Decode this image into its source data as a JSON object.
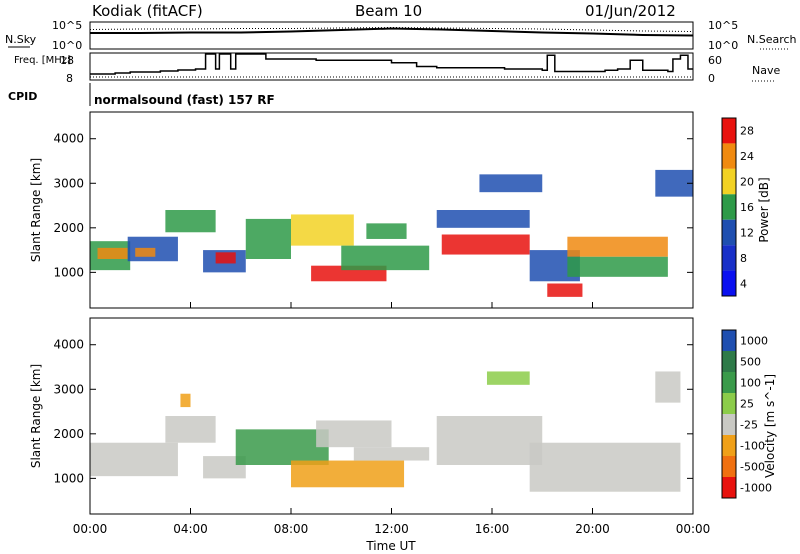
{
  "header": {
    "station": "Kodiak (fitACF)",
    "beam": "Beam 10",
    "date": "01/Jun/2012",
    "cpid_label": "CPID",
    "cpid_value": "normalsound (fast) 157 RF"
  },
  "colors": {
    "sky_line": "#000000",
    "power_red": "#e8120e",
    "power_orange": "#f08a10",
    "power_yellow": "#f2d224",
    "power_green": "#2e9a48",
    "power_blue": "#1f4fb0",
    "vel_gray": "#c9c9c4",
    "vel_green": "#3a9a4a",
    "vel_orange": "#f0a018"
  },
  "chart_data": [
    {
      "type": "line",
      "name": "noise",
      "left_label": "N.Sky",
      "right_label": "N.Search",
      "yticks_left": [
        "10^5",
        "10^0"
      ],
      "yticks_right": [
        "10^5",
        "10^0"
      ],
      "x": [
        0,
        2,
        4,
        6,
        8,
        10,
        12,
        14,
        16,
        18,
        20,
        22,
        24
      ],
      "series": [
        {
          "name": "N.Sky",
          "values": [
            3.0,
            3.0,
            3.1,
            3.1,
            3.3,
            3.6,
            3.9,
            3.7,
            3.4,
            3.1,
            2.9,
            2.6,
            2.5
          ]
        },
        {
          "name": "N.Search",
          "values": [
            3.7,
            3.8,
            3.8,
            3.9,
            3.9,
            4.0,
            4.1,
            4.0,
            3.9,
            3.8,
            3.6,
            3.4,
            3.3
          ]
        }
      ]
    },
    {
      "type": "line",
      "name": "frequency",
      "left_label": "Freq. [MHz]",
      "right_label": "Nave",
      "yticks_left": [
        "18",
        "8"
      ],
      "yticks_right": [
        "60",
        "0"
      ],
      "ylim": [
        8,
        18
      ],
      "segments": [
        [
          0.0,
          10.0
        ],
        [
          1.0,
          10.4
        ],
        [
          1.6,
          10.8
        ],
        [
          2.8,
          11.2
        ],
        [
          3.5,
          11.6
        ],
        [
          4.2,
          12.0
        ],
        [
          4.6,
          18.0
        ],
        [
          5.0,
          12.0
        ],
        [
          5.15,
          18.0
        ],
        [
          5.6,
          12.0
        ],
        [
          5.8,
          18.0
        ],
        [
          6.3,
          18.0
        ],
        [
          7.0,
          16.0
        ],
        [
          8.0,
          16.0
        ],
        [
          9.0,
          15.5
        ],
        [
          10.0,
          15.5
        ],
        [
          11.0,
          15.5
        ],
        [
          12.0,
          14.5
        ],
        [
          13.0,
          13.0
        ],
        [
          13.8,
          12.5
        ],
        [
          14.5,
          12.5
        ],
        [
          15.5,
          12.5
        ],
        [
          16.5,
          12.0
        ],
        [
          18.0,
          11.5
        ],
        [
          18.2,
          17.5
        ],
        [
          18.5,
          11.0
        ],
        [
          19.5,
          11.0
        ],
        [
          20.5,
          11.5
        ],
        [
          21.0,
          12.0
        ],
        [
          21.5,
          15.5
        ],
        [
          22.0,
          11.5
        ],
        [
          23.0,
          11.0
        ],
        [
          23.2,
          16.0
        ],
        [
          23.5,
          17.5
        ],
        [
          23.8,
          12.0
        ]
      ]
    },
    {
      "type": "heatmap",
      "name": "power",
      "ylabel": "Slant Range [km]",
      "yticks": [
        1000,
        2000,
        3000,
        4000
      ],
      "ylim": [
        200,
        4600
      ],
      "colorbar_label": "Power [dB]",
      "colorbar_ticks": [
        "28",
        "24",
        "20",
        "16",
        "12",
        "8",
        "4"
      ],
      "colorbar_colors": [
        "#e8120e",
        "#f08a10",
        "#f2d224",
        "#2e9a48",
        "#1f4fb0",
        "#1830c8",
        "#0a10f0"
      ],
      "regions": [
        {
          "t0": 0.0,
          "t1": 1.6,
          "r0": 1050,
          "r1": 1700,
          "color": "#2e9a48"
        },
        {
          "t0": 0.3,
          "t1": 1.5,
          "r0": 1300,
          "r1": 1550,
          "color": "#f08a10"
        },
        {
          "t0": 1.5,
          "t1": 3.5,
          "r0": 1250,
          "r1": 1800,
          "color": "#1f4fb0"
        },
        {
          "t0": 1.8,
          "t1": 2.6,
          "r0": 1350,
          "r1": 1550,
          "color": "#f08a10"
        },
        {
          "t0": 3.0,
          "t1": 5.0,
          "r0": 1900,
          "r1": 2400,
          "color": "#2e9a48"
        },
        {
          "t0": 4.5,
          "t1": 6.2,
          "r0": 1000,
          "r1": 1500,
          "color": "#1f4fb0"
        },
        {
          "t0": 5.0,
          "t1": 5.8,
          "r0": 1200,
          "r1": 1450,
          "color": "#e8120e"
        },
        {
          "t0": 6.2,
          "t1": 8.0,
          "r0": 1300,
          "r1": 2200,
          "color": "#2e9a48"
        },
        {
          "t0": 8.0,
          "t1": 10.5,
          "r0": 1600,
          "r1": 2300,
          "color": "#f2d224"
        },
        {
          "t0": 8.8,
          "t1": 11.8,
          "r0": 800,
          "r1": 1150,
          "color": "#e8120e"
        },
        {
          "t0": 10.0,
          "t1": 13.5,
          "r0": 1050,
          "r1": 1600,
          "color": "#2e9a48"
        },
        {
          "t0": 11.0,
          "t1": 12.6,
          "r0": 1750,
          "r1": 2100,
          "color": "#2e9a48"
        },
        {
          "t0": 13.8,
          "t1": 17.5,
          "r0": 2000,
          "r1": 2400,
          "color": "#1f4fb0"
        },
        {
          "t0": 14.0,
          "t1": 17.5,
          "r0": 1400,
          "r1": 1850,
          "color": "#e8120e"
        },
        {
          "t0": 17.5,
          "t1": 19.5,
          "r0": 800,
          "r1": 1500,
          "color": "#1f4fb0"
        },
        {
          "t0": 18.2,
          "t1": 19.6,
          "r0": 450,
          "r1": 750,
          "color": "#e8120e"
        },
        {
          "t0": 19.0,
          "t1": 23.0,
          "r0": 1350,
          "r1": 1800,
          "color": "#f08a10"
        },
        {
          "t0": 19.0,
          "t1": 23.0,
          "r0": 900,
          "r1": 1350,
          "color": "#2e9a48"
        },
        {
          "t0": 22.5,
          "t1": 24.0,
          "r0": 2700,
          "r1": 3300,
          "color": "#1f4fb0"
        },
        {
          "t0": 15.5,
          "t1": 18.0,
          "r0": 2800,
          "r1": 3200,
          "color": "#1f4fb0"
        }
      ]
    },
    {
      "type": "heatmap",
      "name": "velocity",
      "ylabel": "Slant Range [km]",
      "yticks": [
        1000,
        2000,
        3000,
        4000
      ],
      "ylim": [
        200,
        4600
      ],
      "colorbar_label": "Velocity [m s^-1]",
      "colorbar_ticks": [
        "1000",
        "500",
        "100",
        "25",
        "-25",
        "-100",
        "-500",
        "-1000"
      ],
      "colorbar_colors": [
        "#1f4fb0",
        "#2e7a48",
        "#3a9a4a",
        "#8ccc4a",
        "#c9c9c4",
        "#f0a018",
        "#f07010",
        "#e8120e"
      ],
      "xticks": [
        "00:00",
        "04:00",
        "08:00",
        "12:00",
        "16:00",
        "20:00",
        "00:00"
      ],
      "xlabel": "Time UT",
      "xlim": [
        0,
        24
      ],
      "regions": [
        {
          "t0": 0.0,
          "t1": 3.5,
          "r0": 1050,
          "r1": 1800,
          "color": "#c9c9c4"
        },
        {
          "t0": 3.0,
          "t1": 5.0,
          "r0": 1800,
          "r1": 2400,
          "color": "#c9c9c4"
        },
        {
          "t0": 4.5,
          "t1": 6.2,
          "r0": 1000,
          "r1": 1500,
          "color": "#c9c9c4"
        },
        {
          "t0": 5.8,
          "t1": 9.5,
          "r0": 1300,
          "r1": 2100,
          "color": "#3a9a4a"
        },
        {
          "t0": 8.0,
          "t1": 12.5,
          "r0": 800,
          "r1": 1400,
          "color": "#f0a018"
        },
        {
          "t0": 9.0,
          "t1": 12.0,
          "r0": 1700,
          "r1": 2300,
          "color": "#c9c9c4"
        },
        {
          "t0": 10.5,
          "t1": 13.5,
          "r0": 1400,
          "r1": 1700,
          "color": "#c9c9c4"
        },
        {
          "t0": 13.8,
          "t1": 18.0,
          "r0": 1300,
          "r1": 2400,
          "color": "#c9c9c4"
        },
        {
          "t0": 17.5,
          "t1": 23.5,
          "r0": 700,
          "r1": 1800,
          "color": "#c9c9c4"
        },
        {
          "t0": 15.8,
          "t1": 17.5,
          "r0": 3100,
          "r1": 3400,
          "color": "#8ccc4a"
        },
        {
          "t0": 3.6,
          "t1": 4.0,
          "r0": 2600,
          "r1": 2900,
          "color": "#f0a018"
        },
        {
          "t0": 22.5,
          "t1": 23.5,
          "r0": 2700,
          "r1": 3400,
          "color": "#c9c9c4"
        }
      ]
    }
  ]
}
